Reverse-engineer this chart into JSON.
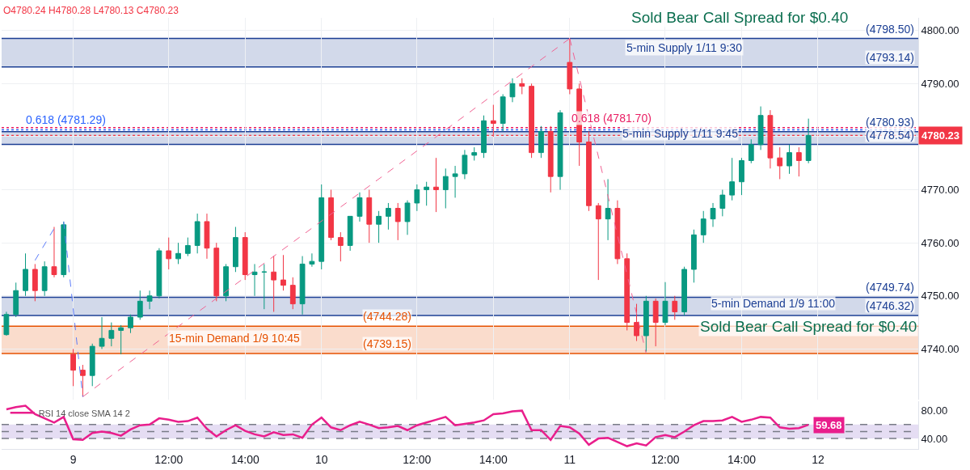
{
  "chart_data": [
    {
      "type": "candlestick",
      "categories": [
        null,
        null,
        null,
        null,
        null,
        null,
        null,
        "9",
        null,
        null,
        null,
        null,
        null,
        null,
        null,
        null,
        null,
        null,
        null,
        null,
        null,
        null,
        null,
        null,
        null,
        null,
        null,
        null,
        null,
        null,
        null,
        null,
        null,
        "10",
        null,
        null,
        null,
        null,
        null,
        null,
        null,
        null,
        null,
        null,
        null,
        null,
        null,
        null,
        null,
        null,
        null,
        null,
        null,
        null,
        null,
        null,
        null,
        null,
        null,
        "11",
        null,
        null,
        null,
        null,
        null,
        null,
        null,
        null,
        null,
        null,
        null,
        null,
        null,
        null,
        null,
        null,
        null,
        null,
        null,
        null,
        null,
        null,
        null,
        null,
        null,
        "12",
        null,
        null,
        null,
        null,
        null,
        null,
        null,
        null,
        null,
        null
      ],
      "ohlc": [
        [
          4742.7,
          4747,
          4742.5,
          4746.5
        ],
        [
          4746.5,
          4752.5,
          4746,
          4751
        ],
        [
          4751,
          4758,
          4750,
          4755
        ],
        [
          4755,
          4756,
          4749,
          4751
        ],
        [
          4751,
          4756.5,
          4750,
          4755.5
        ],
        [
          4755.5,
          4763,
          4753.5,
          4754
        ],
        [
          4754,
          4764,
          4753.5,
          4763.4
        ],
        [
          4739,
          4740,
          4733,
          4736
        ],
        [
          4736,
          4737,
          4731,
          4735
        ],
        [
          4735,
          4741,
          4733,
          4740.5
        ],
        [
          4740.5,
          4746,
          4740,
          4742
        ],
        [
          4742,
          4745,
          4740.5,
          4743.5
        ],
        [
          4743.5,
          4744.5,
          4739,
          4744
        ],
        [
          4744,
          4746.5,
          4743,
          4746
        ],
        [
          4746,
          4751,
          4745.5,
          4749
        ],
        [
          4749,
          4751,
          4747.5,
          4750
        ],
        [
          4750,
          4759,
          4749.5,
          4758.5
        ],
        [
          4758.5,
          4761,
          4755,
          4757
        ],
        [
          4757,
          4760,
          4756,
          4758
        ],
        [
          4758,
          4761,
          4757.5,
          4759.5
        ],
        [
          4759.5,
          4765.5,
          4758,
          4764
        ],
        [
          4764,
          4765.5,
          4757,
          4759
        ],
        [
          4759,
          4760,
          4749,
          4750
        ],
        [
          4750,
          4756,
          4749,
          4755.5
        ],
        [
          4755.5,
          4763,
          4754.5,
          4761
        ],
        [
          4761,
          4762,
          4753,
          4754
        ],
        [
          4754,
          4756,
          4750,
          4754.5
        ],
        [
          4754.5,
          4756,
          4747.5,
          4754.5
        ],
        [
          4754.5,
          4757.5,
          4747,
          4753
        ],
        [
          4753,
          4757.7,
          4751,
          4752
        ],
        [
          4752,
          4753.5,
          4747.5,
          4748.5
        ],
        [
          4748.5,
          4757.5,
          4746.5,
          4756
        ],
        [
          4756,
          4758,
          4755.5,
          4756.5
        ],
        [
          4756.5,
          4771,
          4755,
          4768.5
        ],
        [
          4768.5,
          4770,
          4760.5,
          4761
        ],
        [
          4761,
          4762,
          4756.5,
          4759.5
        ],
        [
          4759.5,
          4765,
          4758.5,
          4765
        ],
        [
          4765,
          4769.5,
          4764,
          4768.5
        ],
        [
          4768.5,
          4770,
          4760,
          4763.5
        ],
        [
          4763.5,
          4766,
          4760,
          4765
        ],
        [
          4765,
          4767.5,
          4762.5,
          4766.5
        ],
        [
          4766.5,
          4767.5,
          4760.5,
          4764
        ],
        [
          4764,
          4768,
          4761.5,
          4767.5
        ],
        [
          4767.5,
          4771,
          4766,
          4770
        ],
        [
          4770,
          4771.5,
          4767,
          4770.5
        ],
        [
          4770.5,
          4776,
          4765.8,
          4770
        ],
        [
          4770,
          4774,
          4766.5,
          4772.5
        ],
        [
          4772.5,
          4774.5,
          4768.5,
          4773
        ],
        [
          4773,
          4777.5,
          4772,
          4776.5
        ],
        [
          4776.5,
          4778,
          4775.5,
          4777
        ],
        [
          4777,
          4784,
          4776,
          4783
        ],
        [
          4783,
          4786,
          4780,
          4782.5
        ],
        [
          4782.5,
          4788,
          4781,
          4787.5
        ],
        [
          4787.5,
          4791,
          4786.5,
          4790
        ],
        [
          4790,
          4791,
          4788,
          4789.5
        ],
        [
          4789.5,
          4790,
          4776,
          4777
        ],
        [
          4777,
          4782,
          4776,
          4781
        ],
        [
          4781,
          4782,
          4769.5,
          4772.5
        ],
        [
          4772.5,
          4785,
          4770,
          4784.5
        ],
        [
          4794,
          4798.5,
          4788,
          4789
        ],
        [
          4789,
          4790,
          4774.5,
          4779
        ],
        [
          4779,
          4781,
          4766,
          4767
        ],
        [
          4767,
          4767.5,
          4753,
          4764.5
        ],
        [
          4764.5,
          4772,
          4760.5,
          4766.5
        ],
        [
          4766.5,
          4768,
          4756,
          4757
        ],
        [
          4757,
          4758,
          4743.5,
          4745
        ],
        [
          4745,
          4748.5,
          4741.5,
          4742.5
        ],
        [
          4742.5,
          4750,
          4739.5,
          4749
        ],
        [
          4749,
          4749.5,
          4740.5,
          4745
        ],
        [
          4745,
          4752.6,
          4744.5,
          4749
        ],
        [
          4749,
          4750,
          4745.5,
          4747
        ],
        [
          4747,
          4755.5,
          4746.3,
          4755
        ],
        [
          4755,
          4762.5,
          4752.5,
          4761.5
        ],
        [
          4761.5,
          4766,
          4760,
          4764.5
        ],
        [
          4764.5,
          4767.5,
          4763,
          4766.5
        ],
        [
          4766.5,
          4770,
          4765,
          4769
        ],
        [
          4769,
          4776,
          4768,
          4771.5
        ],
        [
          4771.5,
          4776,
          4769,
          4775.5
        ],
        [
          4775.5,
          4779.5,
          4775,
          4778.5
        ],
        [
          4778.5,
          4785.7,
          4777.5,
          4784
        ],
        [
          4784,
          4785,
          4774,
          4776
        ],
        [
          4776,
          4778,
          4772,
          4774.5
        ],
        [
          4774.5,
          4778.5,
          4773,
          4777
        ],
        [
          4777,
          4778,
          4772.5,
          4775.5
        ],
        [
          4775.5,
          4783.4,
          4775,
          4780.23
        ],
        null,
        null,
        null,
        null,
        null,
        null,
        null,
        null,
        null,
        null,
        null
      ],
      "series": [
        {
          "type": "line",
          "color": "#f06292",
          "line_style": "dashed",
          "values": [
            null,
            null,
            null,
            null,
            null,
            null,
            null,
            null,
            4731,
            null,
            null,
            null,
            null,
            null,
            null,
            null,
            null,
            null,
            null,
            null,
            null,
            null,
            null,
            null,
            null,
            null,
            null,
            null,
            null,
            null,
            null,
            null,
            null,
            null,
            null,
            null,
            null,
            null,
            null,
            null,
            null,
            null,
            null,
            null,
            null,
            null,
            null,
            null,
            null,
            null,
            null,
            null,
            null,
            null,
            null,
            null,
            null,
            null,
            null,
            4798.5,
            null,
            null,
            null,
            null,
            null,
            null,
            null,
            null,
            null,
            null,
            null,
            null,
            null,
            null,
            null,
            null,
            null,
            null,
            null,
            null,
            null,
            null,
            null,
            null,
            null,
            null,
            null,
            null,
            null,
            null,
            null,
            null,
            null,
            null,
            null,
            null
          ]
        },
        {
          "type": "line",
          "color": "#f06292",
          "line_style": "dashed",
          "values": [
            null,
            null,
            null,
            null,
            null,
            null,
            null,
            null,
            null,
            null,
            null,
            null,
            null,
            null,
            null,
            null,
            null,
            null,
            null,
            null,
            null,
            null,
            null,
            null,
            null,
            null,
            null,
            null,
            null,
            null,
            null,
            null,
            null,
            null,
            null,
            null,
            null,
            null,
            null,
            null,
            null,
            null,
            null,
            null,
            null,
            null,
            null,
            null,
            null,
            null,
            null,
            null,
            null,
            null,
            null,
            null,
            null,
            null,
            null,
            4798.5,
            null,
            null,
            null,
            null,
            null,
            null,
            null,
            4739.2,
            null,
            null,
            null,
            null,
            null,
            null,
            null,
            null,
            null,
            null,
            null,
            null,
            null,
            null,
            null,
            null,
            null,
            null,
            null,
            null,
            null,
            null,
            null,
            null,
            null,
            null,
            null,
            null
          ]
        },
        {
          "type": "line",
          "color": "#5c7cfa",
          "line_style": "dashed",
          "values": [
            null,
            null,
            null,
            null,
            null,
            null,
            4764,
            null,
            4731,
            null,
            null,
            null,
            null,
            null,
            null,
            null,
            null,
            null,
            null,
            null,
            null,
            null,
            null,
            null,
            null,
            null,
            null,
            null,
            null,
            null,
            null,
            null,
            null,
            null,
            null,
            null,
            null,
            null,
            null,
            null,
            null,
            null,
            null,
            null,
            null,
            null,
            null,
            null,
            null,
            null,
            null,
            null,
            null,
            null,
            null,
            null,
            null,
            null,
            null,
            null,
            null,
            null,
            null,
            null,
            null,
            null,
            null,
            null,
            null,
            null,
            null,
            null,
            null,
            null,
            null,
            null,
            null,
            null,
            null,
            null,
            null,
            null,
            null,
            null,
            null,
            null,
            null,
            null,
            null,
            null,
            null,
            null,
            null,
            null,
            null,
            null
          ]
        },
        {
          "type": "line",
          "color": "#5c7cfa",
          "line_style": "dashed",
          "values": [
            null,
            null,
            null,
            4756.7,
            null,
            4762.7,
            null,
            null,
            null,
            null,
            null,
            null,
            null,
            null,
            null,
            null,
            null,
            null,
            null,
            null,
            null,
            null,
            null,
            null,
            null,
            null,
            null,
            null,
            null,
            null,
            null,
            null,
            null,
            null,
            null,
            null,
            null,
            null,
            null,
            null,
            null,
            null,
            null,
            null,
            null,
            null,
            null,
            null,
            null,
            null,
            null,
            null,
            null,
            null,
            null,
            null,
            null,
            null,
            null,
            null,
            null,
            null,
            null,
            null,
            null,
            null,
            null,
            null,
            null,
            null,
            null,
            null,
            null,
            null,
            null,
            null,
            null,
            null,
            null,
            null,
            null,
            null,
            null,
            null,
            null,
            null,
            null,
            null,
            null,
            null,
            null,
            null,
            null,
            null,
            null,
            null
          ]
        }
      ],
      "ylim": [
        4730.5,
        4802.4
      ],
      "yticks": [
        {
          "value": 4740,
          "label": "4740.00"
        },
        {
          "value": 4750,
          "label": "4750.00"
        },
        {
          "value": 4760,
          "label": "4760.00"
        },
        {
          "value": 4770,
          "label": "4770.00"
        },
        {
          "value": 4780,
          "label": null
        },
        {
          "value": 4790,
          "label": "4790.00"
        },
        {
          "value": 4800,
          "label": "4800.00"
        }
      ],
      "grid": true,
      "legend": false,
      "bands": [
        {
          "axis": "y",
          "from": 4793.14,
          "to": 4798.5,
          "color": "#1c3f94"
        },
        {
          "axis": "y",
          "from": 4778.54,
          "to": 4780.93,
          "color": "#1c3f94"
        },
        {
          "axis": "y",
          "from": 4746.32,
          "to": 4749.74,
          "color": "#1c3f94"
        },
        {
          "axis": "y",
          "from": 4739.15,
          "to": 4744.28,
          "color": "#e65100"
        }
      ],
      "ref_lines": [
        {
          "axis": "y",
          "value": 4781.29,
          "color": "#2962ff",
          "line_style": "dotted"
        },
        {
          "axis": "y",
          "value": 4781.7,
          "color": "#e91e63",
          "line_style": "dotted"
        },
        {
          "axis": "y",
          "value": 4780.23,
          "color": "#f23645",
          "line_style": "dotted",
          "label": "4780.23"
        },
        {
          "axis": "y",
          "value": 4798.5,
          "color": "#1c3f94",
          "line_style": "solid"
        },
        {
          "axis": "y",
          "value": 4793.14,
          "color": "#1c3f94",
          "line_style": "solid"
        },
        {
          "axis": "y",
          "value": 4780.93,
          "color": "#1c3f94",
          "line_style": "solid"
        },
        {
          "axis": "y",
          "value": 4778.54,
          "color": "#1c3f94",
          "line_style": "solid"
        },
        {
          "axis": "y",
          "value": 4749.74,
          "color": "#1c3f94",
          "line_style": "solid"
        },
        {
          "axis": "y",
          "value": 4746.32,
          "color": "#1c3f94",
          "line_style": "solid"
        },
        {
          "axis": "y",
          "value": 4744.28,
          "color": "#e65100",
          "line_style": "solid"
        },
        {
          "axis": "y",
          "value": 4739.15,
          "color": "#e65100",
          "line_style": "solid"
        }
      ],
      "annotations": [
        "O4780.24 H4780.28 L4780.13 C4780.23",
        "Sold Bear Call Spread for $0.40",
        "Sold Bear Call Spread for $0.40",
        "5-min Supply 1/11 9:30",
        "15-min Demand 1/9 10:45",
        {
          "text": "(4798.50)",
          "y": 4798.5
        },
        {
          "text": "(4793.14)",
          "y": 4793.14
        },
        {
          "text": "0.618 (4781.29)",
          "y": 4781.29
        },
        {
          "text": "0.618 (4781.70)",
          "y": 4781.7
        },
        {
          "text": "(4780.93)",
          "y": 4780.93
        },
        {
          "text": "5-min Supply 1/11 9:45",
          "y": 4778.8
        },
        {
          "text": "(4778.54)",
          "y": 4778.54
        },
        {
          "text": "(4749.74)",
          "y": 4749.74
        },
        {
          "text": "5-min Demand 1/9 11:00",
          "y": 4746.8
        },
        {
          "text": "(4746.32)",
          "y": 4746.32
        },
        {
          "text": "(4744.28)",
          "y": 4744.28
        },
        {
          "text": "(4739.15)",
          "y": 4739.15
        }
      ]
    },
    {
      "type": "line",
      "categories": [
        null,
        null,
        null,
        null,
        null,
        null,
        null,
        null,
        null,
        null,
        null,
        null,
        null,
        null,
        null,
        null,
        null,
        "12:00",
        null,
        null,
        null,
        null,
        null,
        null,
        null,
        "14:00",
        null,
        null,
        null,
        null,
        null,
        null,
        null,
        null,
        null,
        null,
        null,
        null,
        null,
        null,
        null,
        null,
        null,
        "12:00",
        null,
        null,
        null,
        null,
        null,
        null,
        null,
        "14:00",
        null,
        null,
        null,
        null,
        null,
        null,
        null,
        null,
        null,
        null,
        null,
        null,
        null,
        null,
        null,
        null,
        null,
        "12:00",
        null,
        null,
        null,
        null,
        null,
        null,
        null,
        "14:00",
        null,
        null,
        null,
        null,
        null,
        null,
        null,
        null,
        null,
        null,
        null,
        null,
        null,
        null,
        null,
        null,
        null,
        null
      ],
      "series": [
        {
          "name": "RSI 14 close SMA 14 2",
          "color": "#e91e8c",
          "values": [
            82,
            85,
            87,
            75,
            69,
            63,
            71,
            39,
            38,
            48,
            50,
            48,
            44,
            53,
            59,
            60,
            69,
            67,
            64,
            65,
            70,
            54,
            43,
            52,
            59,
            51,
            46,
            43,
            49,
            45,
            46,
            41,
            60,
            70,
            56,
            52,
            59,
            64,
            60,
            55,
            56,
            58,
            52,
            59,
            63,
            67,
            71,
            59,
            61,
            63,
            66,
            75,
            76,
            79,
            80,
            52,
            52,
            38,
            58,
            56,
            47,
            31,
            40,
            41,
            35,
            29,
            33,
            30,
            42,
            45,
            42,
            50,
            59,
            65,
            65,
            66,
            71,
            64,
            67,
            71,
            70,
            56,
            54,
            55,
            59.68,
            null,
            null,
            null,
            null,
            null,
            null,
            null,
            null,
            null,
            null,
            null
          ],
          "value_labels": [
            null,
            null,
            null,
            null,
            null,
            null,
            null,
            null,
            null,
            null,
            null,
            null,
            null,
            null,
            null,
            null,
            null,
            null,
            null,
            null,
            null,
            null,
            null,
            null,
            null,
            null,
            null,
            null,
            null,
            null,
            null,
            null,
            null,
            null,
            null,
            null,
            null,
            null,
            null,
            null,
            null,
            null,
            null,
            null,
            null,
            null,
            null,
            null,
            null,
            null,
            null,
            null,
            null,
            null,
            null,
            null,
            null,
            null,
            null,
            null,
            null,
            null,
            null,
            null,
            null,
            null,
            null,
            null,
            null,
            null,
            null,
            null,
            null,
            null,
            null,
            null,
            null,
            null,
            null,
            null,
            null,
            null,
            null,
            null,
            "59.68",
            null,
            null,
            null,
            null,
            null,
            null,
            null,
            null,
            null,
            null,
            null
          ]
        }
      ],
      "ylim": [
        25,
        93.7
      ],
      "yticks": [
        {
          "value": 40,
          "label": "40.00"
        },
        {
          "value": 80,
          "label": "80.00"
        }
      ],
      "legend": "top left",
      "bands": [
        {
          "axis": "y",
          "from": 40,
          "to": 60,
          "color": "#7e57c2"
        }
      ],
      "ref_lines": [
        {
          "axis": "y",
          "value": 60,
          "color": "#787b86",
          "line_style": "dashed"
        },
        {
          "axis": "y",
          "value": 50,
          "color": "#787b86",
          "line_style": "dashed"
        },
        {
          "axis": "y",
          "value": 40,
          "color": "#787b86",
          "line_style": "dashed"
        }
      ]
    }
  ]
}
